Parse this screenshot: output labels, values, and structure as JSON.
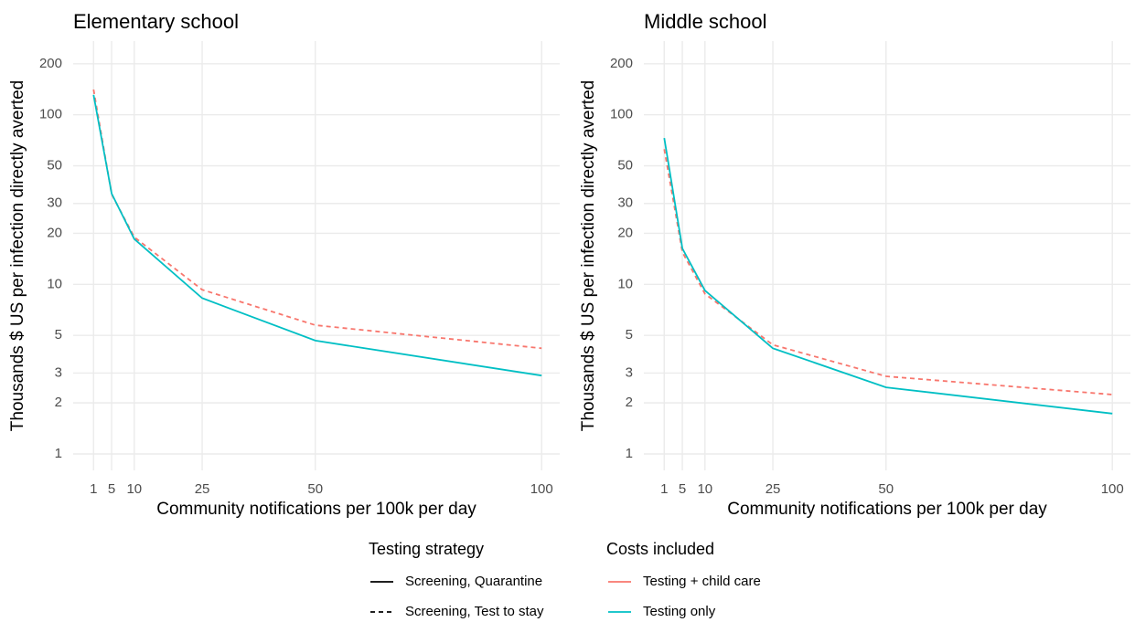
{
  "chart_data": [
    {
      "type": "line",
      "title": "Elementary school",
      "xlabel": "Community notifications per 100k per day",
      "ylabel": "Thousands $ US per infection directly averted",
      "x": [
        1,
        5,
        10,
        25,
        50,
        100
      ],
      "xlim": [
        -3.5,
        104
      ],
      "ylim": [
        0.8,
        272
      ],
      "log_y": true,
      "grid": true,
      "xticks": [
        1,
        5,
        10,
        25,
        50,
        100
      ],
      "yticks": [
        1,
        2,
        3,
        5,
        10,
        20,
        30,
        50,
        100,
        200
      ],
      "series": [
        {
          "color": "#F8766D",
          "dash": "dashed",
          "values": [
            141,
            34,
            19,
            9.3,
            5.75,
            4.2
          ]
        },
        {
          "color": "#00BFC4",
          "dash": "solid",
          "values": [
            131,
            34.3,
            18.5,
            8.3,
            4.66,
            2.9
          ]
        }
      ]
    },
    {
      "type": "line",
      "title": "Middle school",
      "xlabel": "Community notifications per 100k per day",
      "ylabel": "Thousands $ US per infection directly averted",
      "x": [
        1,
        5,
        10,
        25,
        50,
        100
      ],
      "xlim": [
        -3.5,
        104
      ],
      "ylim": [
        0.8,
        272
      ],
      "log_y": true,
      "grid": true,
      "xticks": [
        1,
        5,
        10,
        25,
        50,
        100
      ],
      "yticks": [
        1,
        2,
        3,
        5,
        10,
        20,
        30,
        50,
        100,
        200
      ],
      "series": [
        {
          "color": "#F8766D",
          "dash": "dashed",
          "values": [
            62.7,
            15.5,
            8.8,
            4.4,
            2.87,
            2.24
          ]
        },
        {
          "color": "#00BFC4",
          "dash": "solid",
          "values": [
            73,
            16.3,
            9.2,
            4.2,
            2.47,
            1.73
          ]
        }
      ]
    }
  ],
  "legend": [
    {
      "title": "Testing strategy",
      "entries": [
        {
          "label": "Screening, Quarantine",
          "color": "#000000",
          "dash": "solid"
        },
        {
          "label": "Screening, Test to stay",
          "color": "#000000",
          "dash": "dashed"
        }
      ]
    },
    {
      "title": "Costs included",
      "entries": [
        {
          "label": "Testing + child care",
          "color": "#F8766D",
          "dash": "solid"
        },
        {
          "label": "Testing only",
          "color": "#00BFC4",
          "dash": "solid"
        }
      ]
    }
  ]
}
